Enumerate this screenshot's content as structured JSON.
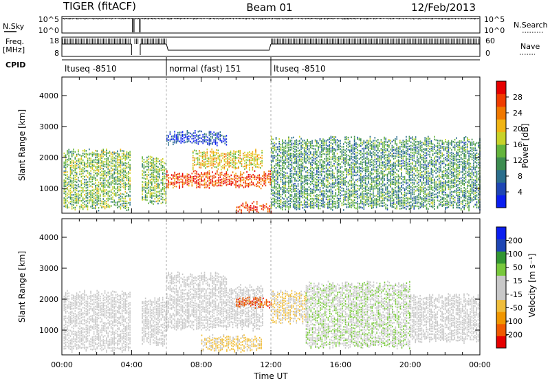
{
  "header": {
    "radar": "TIGER (fitACF)",
    "beam": "Beam 01",
    "date": "12/Feb/2013"
  },
  "status_panels": {
    "nsky_label": "N.Sky",
    "nsky_ticks": [
      "10^5",
      "10^0"
    ],
    "nsearch_label": "N.Search",
    "nsearch_ticks": [
      "10^5",
      "10^0"
    ],
    "freq_label_1": "Freq.",
    "freq_label_2": "[MHz]",
    "freq_ticks": [
      "18",
      "8"
    ],
    "nave_label": "Nave",
    "nave_ticks": [
      "60",
      "0"
    ],
    "cpid_label": "CPID",
    "cpid_segments": [
      {
        "start_h": 0,
        "end_h": 6,
        "label": "ltuseq -8510"
      },
      {
        "start_h": 6,
        "end_h": 12,
        "label": "normal (fast) 151"
      },
      {
        "start_h": 12,
        "end_h": 24,
        "label": "ltuseq -8510"
      }
    ],
    "data_gaps_h": [
      [
        4.0,
        4.15
      ],
      [
        4.4,
        4.5
      ]
    ]
  },
  "colors": {
    "power_scale": [
      "#0a1ef0",
      "#1e46b4",
      "#2a6e8c",
      "#3c8c50",
      "#64b43c",
      "#c8d228",
      "#f0b414",
      "#f07800",
      "#f03c00",
      "#e60000"
    ],
    "velocity_scale": [
      "#e60000",
      "#f05a00",
      "#f09600",
      "#f0be3c",
      "#c8c8c8",
      "#c8c8c8",
      "#78c83c",
      "#329632",
      "#1e46b4",
      "#0a1ef0"
    ]
  },
  "chart_data": [
    {
      "type": "heatmap",
      "name": "power",
      "ylabel": "Slant Range [km]",
      "xlabel": "",
      "xlim": [
        0,
        24
      ],
      "ylim": [
        200,
        4600
      ],
      "y_ticks": [
        "1000",
        "2000",
        "3000",
        "4000"
      ],
      "colorbar_label": "Power [dB]",
      "colorbar_ticks": [
        "4",
        "8",
        "12",
        "16",
        "20",
        "24",
        "28"
      ],
      "colorbar_range": [
        0,
        32
      ],
      "regions": [
        {
          "x": [
            0.1,
            3.9
          ],
          "y": [
            300,
            2300
          ],
          "level": 0.45
        },
        {
          "x": [
            4.5,
            6.0
          ],
          "y": [
            500,
            2100
          ],
          "level": 0.45
        },
        {
          "x": [
            6.0,
            12.0
          ],
          "y": [
            1000,
            1600
          ],
          "level": 0.85
        },
        {
          "x": [
            6.0,
            9.5
          ],
          "y": [
            2400,
            2900
          ],
          "level": 0.15
        },
        {
          "x": [
            7.5,
            11.5
          ],
          "y": [
            1600,
            2300
          ],
          "level": 0.6
        },
        {
          "x": [
            10.0,
            12.0
          ],
          "y": [
            200,
            600
          ],
          "level": 0.9
        },
        {
          "x": [
            12.0,
            24.0
          ],
          "y": [
            300,
            2700
          ],
          "level": 0.35
        }
      ]
    },
    {
      "type": "heatmap",
      "name": "velocity",
      "ylabel": "Slant Range [km]",
      "xlabel": "Time UT",
      "xlim": [
        0,
        24
      ],
      "ylim": [
        200,
        4600
      ],
      "x_ticks": [
        "00:00",
        "04:00",
        "08:00",
        "12:00",
        "16:00",
        "20:00",
        "00:00"
      ],
      "y_ticks": [
        "1000",
        "2000",
        "3000",
        "4000"
      ],
      "colorbar_label": "Velocity [m s⁻¹]",
      "colorbar_ticks": [
        "200",
        "100",
        "50",
        "15",
        "-15",
        "-50",
        "-100",
        "-200"
      ],
      "colorbar_range": [
        -250,
        250
      ],
      "regions": [
        {
          "x": [
            0.1,
            3.9
          ],
          "y": [
            300,
            2300
          ],
          "value": 0
        },
        {
          "x": [
            4.5,
            6.0
          ],
          "y": [
            500,
            2100
          ],
          "value": 0
        },
        {
          "x": [
            6.0,
            11.5
          ],
          "y": [
            1000,
            2500
          ],
          "value": 0
        },
        {
          "x": [
            6.0,
            9.5
          ],
          "y": [
            2400,
            2900
          ],
          "value": 0
        },
        {
          "x": [
            8.0,
            11.5
          ],
          "y": [
            300,
            900
          ],
          "value": -60
        },
        {
          "x": [
            10.0,
            12.0
          ],
          "y": [
            1700,
            2100
          ],
          "value": -180
        },
        {
          "x": [
            12.0,
            14.0
          ],
          "y": [
            1200,
            2300
          ],
          "value": -50
        },
        {
          "x": [
            14.0,
            20.0
          ],
          "y": [
            400,
            2600
          ],
          "value": 40
        },
        {
          "x": [
            20.0,
            24.0
          ],
          "y": [
            600,
            2200
          ],
          "value": 5
        }
      ]
    }
  ]
}
